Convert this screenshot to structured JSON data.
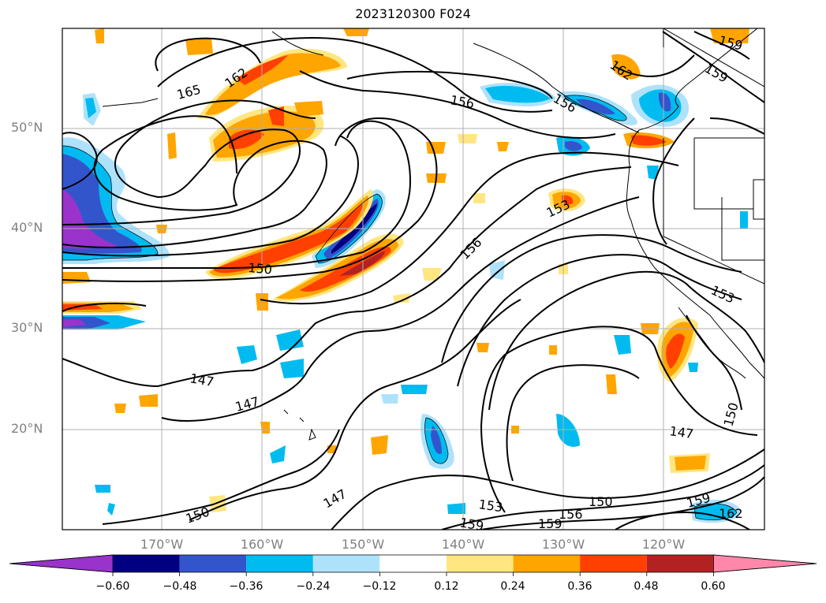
{
  "title": "2023120300 F024",
  "lat_labels": [
    "50°N",
    "40°N",
    "30°N",
    "20°N"
  ],
  "lon_labels": [
    "170°W",
    "160°W",
    "150°W",
    "140°W",
    "130°W",
    "120°W"
  ],
  "colorbar": {
    "ticks": [
      "−0.60",
      "−0.48",
      "−0.36",
      "−0.24",
      "−0.12",
      "0.12",
      "0.24",
      "0.36",
      "0.48",
      "0.60"
    ],
    "colors": [
      "#9933cc",
      "#000080",
      "#3355cc",
      "#00bbf0",
      "#aee2fb",
      "#ffffff",
      "#ffe680",
      "#ffa500",
      "#ff4000",
      "#b22222",
      "#ff88aa"
    ]
  },
  "contour_labels": [
    "165",
    "162",
    "156",
    "156",
    "159",
    "159",
    "162",
    "153",
    "156",
    "150",
    "153",
    "147",
    "147",
    "150",
    "147",
    "150",
    "153",
    "159",
    "159",
    "156",
    "150",
    "159",
    "162",
    "147"
  ]
}
